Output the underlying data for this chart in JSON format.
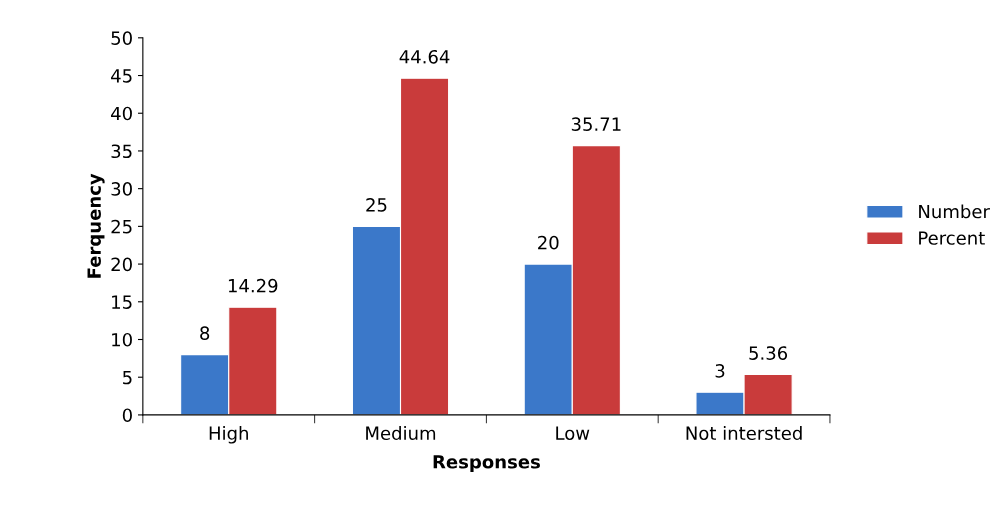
{
  "chart_data": {
    "type": "bar",
    "xlabel": "Responses",
    "ylabel": "Ferquency",
    "categories": [
      "High",
      "Medium",
      "Low",
      "Not intersted"
    ],
    "series": [
      {
        "name": "Number",
        "color": "#3b78c9",
        "values": [
          8,
          25,
          20,
          3
        ]
      },
      {
        "name": "Percent",
        "color": "#c93b3b",
        "values": [
          14.29,
          44.64,
          35.71,
          5.36
        ]
      }
    ],
    "ylim": [
      0,
      50
    ],
    "yticks": [
      0,
      5,
      10,
      15,
      20,
      25,
      30,
      35,
      40,
      45,
      50
    ],
    "data_labels": true,
    "grid": false,
    "legend": "right"
  }
}
